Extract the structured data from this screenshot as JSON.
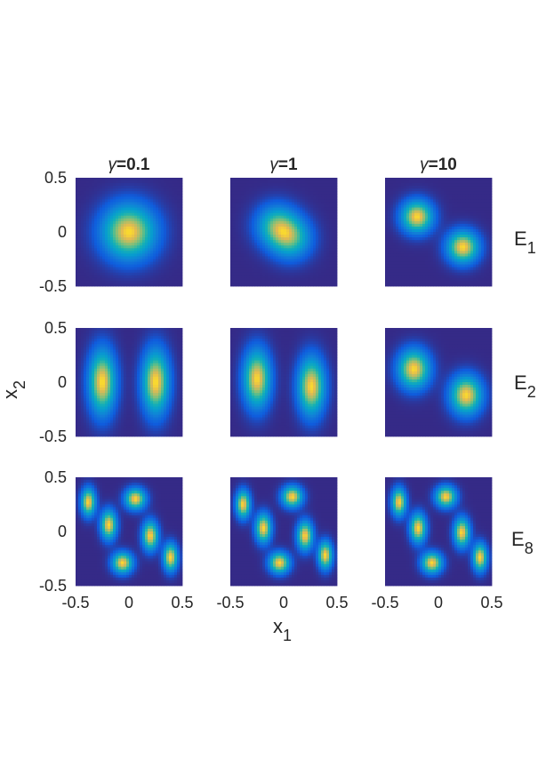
{
  "chart_data": {
    "type": "heatmap",
    "colormap": "parula",
    "column_titles": [
      {
        "symbol": "γ",
        "value": "=0.1"
      },
      {
        "symbol": "γ",
        "value": "=1"
      },
      {
        "symbol": "γ",
        "value": "=10"
      }
    ],
    "row_labels": [
      {
        "base": "E",
        "sub": "1"
      },
      {
        "base": "E",
        "sub": "2"
      },
      {
        "base": "E",
        "sub": "8"
      }
    ],
    "xlabel": {
      "base": "x",
      "sub": "1"
    },
    "ylabel": {
      "base": "x",
      "sub": "2"
    },
    "xlim": [
      -0.5,
      0.5
    ],
    "ylim": [
      -0.5,
      0.5
    ],
    "x_ticks": [
      "-0.5",
      "0",
      "0.5"
    ],
    "y_ticks": [
      "0.5",
      "0",
      "-0.5"
    ],
    "panels": [
      {
        "row": 0,
        "col": 0,
        "peaks": [
          {
            "x": 0.0,
            "y": 0.0,
            "sx": 0.17,
            "sy": 0.17,
            "a": 1.0
          }
        ]
      },
      {
        "row": 0,
        "col": 1,
        "peaks": [
          {
            "x": -0.07,
            "y": 0.06,
            "sx": 0.13,
            "sy": 0.13,
            "a": 0.9
          },
          {
            "x": 0.07,
            "y": -0.06,
            "sx": 0.13,
            "sy": 0.13,
            "a": 0.9
          }
        ]
      },
      {
        "row": 0,
        "col": 2,
        "peaks": [
          {
            "x": -0.2,
            "y": 0.14,
            "sx": 0.1,
            "sy": 0.1,
            "a": 1.0
          },
          {
            "x": 0.23,
            "y": -0.14,
            "sx": 0.1,
            "sy": 0.1,
            "a": 1.0
          }
        ]
      },
      {
        "row": 1,
        "col": 0,
        "peaks": [
          {
            "x": -0.25,
            "y": 0.0,
            "sx": 0.085,
            "sy": 0.2,
            "a": 1.0
          },
          {
            "x": 0.25,
            "y": 0.0,
            "sx": 0.085,
            "sy": 0.2,
            "a": 1.0
          }
        ]
      },
      {
        "row": 1,
        "col": 1,
        "peaks": [
          {
            "x": -0.25,
            "y": 0.03,
            "sx": 0.085,
            "sy": 0.18,
            "a": 1.0
          },
          {
            "x": 0.26,
            "y": -0.04,
            "sx": 0.085,
            "sy": 0.18,
            "a": 1.0
          }
        ]
      },
      {
        "row": 1,
        "col": 2,
        "peaks": [
          {
            "x": -0.23,
            "y": 0.12,
            "sx": 0.1,
            "sy": 0.12,
            "a": 1.0
          },
          {
            "x": 0.26,
            "y": -0.12,
            "sx": 0.1,
            "sy": 0.12,
            "a": 1.0
          }
        ]
      },
      {
        "row": 2,
        "col": 0,
        "peaks": [
          {
            "x": -0.38,
            "y": 0.27,
            "sx": 0.045,
            "sy": 0.085,
            "a": 1.0
          },
          {
            "x": -0.19,
            "y": 0.06,
            "sx": 0.05,
            "sy": 0.09,
            "a": 1.0
          },
          {
            "x": 0.06,
            "y": 0.3,
            "sx": 0.065,
            "sy": 0.065,
            "a": 1.0
          },
          {
            "x": 0.2,
            "y": -0.04,
            "sx": 0.05,
            "sy": 0.09,
            "a": 1.0
          },
          {
            "x": -0.06,
            "y": -0.29,
            "sx": 0.065,
            "sy": 0.065,
            "a": 1.0
          },
          {
            "x": 0.39,
            "y": -0.24,
            "sx": 0.045,
            "sy": 0.085,
            "a": 1.0
          }
        ]
      },
      {
        "row": 2,
        "col": 1,
        "peaks": [
          {
            "x": -0.38,
            "y": 0.25,
            "sx": 0.045,
            "sy": 0.085,
            "a": 1.0
          },
          {
            "x": -0.19,
            "y": 0.03,
            "sx": 0.05,
            "sy": 0.09,
            "a": 1.0
          },
          {
            "x": 0.08,
            "y": 0.32,
            "sx": 0.065,
            "sy": 0.065,
            "a": 1.0
          },
          {
            "x": 0.2,
            "y": -0.04,
            "sx": 0.05,
            "sy": 0.09,
            "a": 1.0
          },
          {
            "x": -0.04,
            "y": -0.29,
            "sx": 0.065,
            "sy": 0.065,
            "a": 1.0
          },
          {
            "x": 0.39,
            "y": -0.22,
            "sx": 0.045,
            "sy": 0.085,
            "a": 1.0
          }
        ]
      },
      {
        "row": 2,
        "col": 2,
        "peaks": [
          {
            "x": -0.37,
            "y": 0.27,
            "sx": 0.045,
            "sy": 0.085,
            "a": 1.0
          },
          {
            "x": -0.19,
            "y": 0.03,
            "sx": 0.05,
            "sy": 0.09,
            "a": 1.0
          },
          {
            "x": 0.07,
            "y": 0.32,
            "sx": 0.065,
            "sy": 0.065,
            "a": 1.0
          },
          {
            "x": 0.22,
            "y": -0.01,
            "sx": 0.05,
            "sy": 0.09,
            "a": 1.0
          },
          {
            "x": -0.06,
            "y": -0.29,
            "sx": 0.065,
            "sy": 0.065,
            "a": 1.0
          },
          {
            "x": 0.39,
            "y": -0.24,
            "sx": 0.045,
            "sy": 0.085,
            "a": 1.0
          }
        ]
      }
    ]
  }
}
